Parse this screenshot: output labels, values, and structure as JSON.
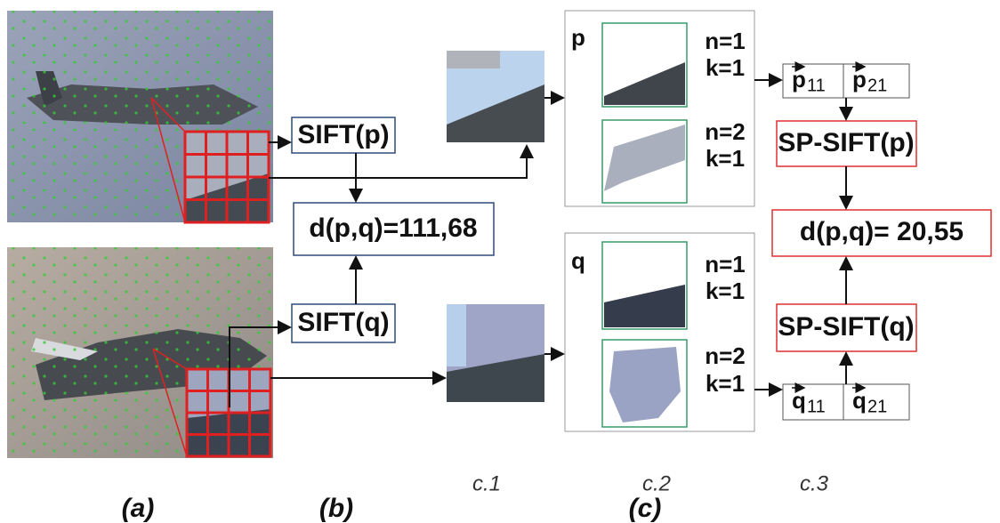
{
  "sift": {
    "p": "SIFT(p)",
    "q": "SIFT(q)",
    "distance": "d(p,q)=111,68"
  },
  "regions": [
    {
      "label": "p",
      "segments": [
        {
          "n": "n=1",
          "k": "k=1"
        },
        {
          "n": "n=2",
          "k": "k=1"
        }
      ],
      "vectors": [
        {
          "symbol": "p",
          "index": "11"
        },
        {
          "symbol": "p",
          "index": "21"
        }
      ]
    },
    {
      "label": "q",
      "segments": [
        {
          "n": "n=1",
          "k": "k=1"
        },
        {
          "n": "n=2",
          "k": "k=1"
        }
      ],
      "vectors": [
        {
          "symbol": "q",
          "index": "11"
        },
        {
          "symbol": "q",
          "index": "21"
        }
      ]
    }
  ],
  "sp_sift": {
    "p": "SP-SIFT(p)",
    "q": "SP-SIFT(q)",
    "distance": "d(p,q)= 20,55"
  },
  "columns": [
    "c.1",
    "c.2",
    "c.3"
  ],
  "panels": [
    "(a)",
    "(b)",
    "(c)"
  ]
}
